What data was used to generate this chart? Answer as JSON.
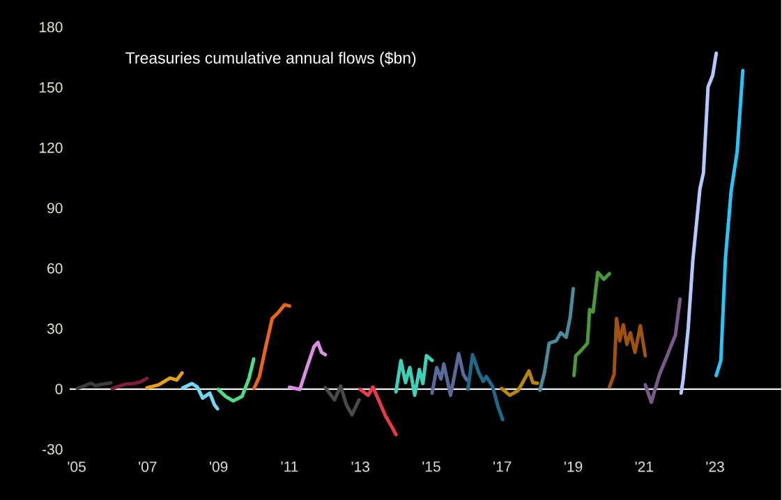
{
  "chart_data": {
    "type": "line",
    "title": "Treasuries cumulative annual flows ($bn)",
    "xlim": [
      2004.8,
      2024.86
    ],
    "ylim": [
      -30,
      180
    ],
    "xticks": [
      {
        "value": 2005,
        "label": "'05"
      },
      {
        "value": 2007,
        "label": "'07"
      },
      {
        "value": 2009,
        "label": "'09"
      },
      {
        "value": 2011,
        "label": "'11"
      },
      {
        "value": 2013,
        "label": "'13"
      },
      {
        "value": 2015,
        "label": "'15"
      },
      {
        "value": 2017,
        "label": "'17"
      },
      {
        "value": 2019,
        "label": "'19"
      },
      {
        "value": 2021,
        "label": "'21"
      },
      {
        "value": 2023,
        "label": "'23"
      }
    ],
    "yticks": [
      -30,
      0,
      30,
      60,
      90,
      120,
      150,
      180
    ],
    "ref_lines": [
      {
        "axis": "y",
        "value": 0,
        "color": "#e6e6e6"
      }
    ],
    "series": [
      {
        "color": "#3c3c3c",
        "x": [
          2005.02,
          2005.2,
          2005.4,
          2005.53,
          2005.75,
          2005.96
        ],
        "values": [
          0.3,
          1.5,
          2.9,
          1.7,
          2.5,
          3.1
        ]
      },
      {
        "color": "#7a1f35",
        "x": [
          2006.0,
          2006.2,
          2006.4,
          2006.6,
          2006.8,
          2006.9,
          2006.98
        ],
        "values": [
          0.2,
          1.5,
          2.5,
          2.7,
          3.6,
          4.5,
          5.3
        ]
      },
      {
        "color": "#e6a015",
        "x": [
          2006.98,
          2007.31,
          2007.63,
          2007.82,
          2007.97
        ],
        "values": [
          0.6,
          2.1,
          5.5,
          4.5,
          8.0
        ]
      },
      {
        "color": "#6fd8f5",
        "x": [
          2007.99,
          2008.25,
          2008.4,
          2008.55,
          2008.75,
          2008.88,
          2008.97
        ],
        "values": [
          0.6,
          2.7,
          1.0,
          -4.5,
          -2.0,
          -7.7,
          -9.8
        ]
      },
      {
        "color": "#4fdc8a",
        "x": [
          2008.99,
          2009.2,
          2009.41,
          2009.66,
          2009.86,
          2009.99
        ],
        "values": [
          -0.2,
          -3.7,
          -5.9,
          -3.7,
          5.5,
          14.9
        ]
      },
      {
        "color": "#e8661a",
        "x": [
          2010.0,
          2010.15,
          2010.31,
          2010.51,
          2010.7,
          2010.86,
          2011.0
        ],
        "values": [
          0.3,
          6.2,
          19.4,
          35,
          38.4,
          41.9,
          41.3
        ]
      },
      {
        "color": "#d98ee0",
        "x": [
          2011.0,
          2011.29,
          2011.49,
          2011.69,
          2011.8,
          2011.9,
          2012.01
        ],
        "values": [
          0.9,
          -0.2,
          10.7,
          21.1,
          23.2,
          18.3,
          17.1
        ]
      },
      {
        "color": "#4a4a4a",
        "x": [
          2012.01,
          2012.27,
          2012.44,
          2012.6,
          2012.76,
          2012.96
        ],
        "values": [
          0.7,
          -5.4,
          1.5,
          -7.7,
          -12.8,
          -5.4
        ]
      },
      {
        "color": "#e83a4a",
        "x": [
          2012.99,
          2013.22,
          2013.35,
          2013.51,
          2013.71,
          2013.9,
          2014.0
        ],
        "values": [
          -0.2,
          -3.1,
          1.0,
          -5.4,
          -13.5,
          -19.3,
          -22.7
        ]
      },
      {
        "color": "#3fd0b8",
        "x": [
          2014.0,
          2014.14,
          2014.27,
          2014.39,
          2014.53,
          2014.66,
          2014.76,
          2014.86,
          2015.02
        ],
        "values": [
          -1.4,
          14.2,
          3.2,
          10.7,
          -3.1,
          9.7,
          2.7,
          16.6,
          14.2
        ]
      },
      {
        "color": "#5a6a9a",
        "x": [
          2015.02,
          2015.15,
          2015.27,
          2015.35,
          2015.54,
          2015.77,
          2015.9,
          2016.0
        ],
        "values": [
          -2.0,
          10.7,
          5.0,
          12.5,
          -3.1,
          17.6,
          7.3,
          4.5
        ]
      },
      {
        "color": "#1f6a8a",
        "x": [
          2016.03,
          2016.16,
          2016.33,
          2016.46,
          2016.55,
          2016.72,
          2016.88,
          2017.01
        ],
        "values": [
          -0.2,
          17.1,
          8.4,
          3.8,
          6.2,
          1.5,
          -8.9,
          -15.2
        ]
      },
      {
        "color": "#b8860b",
        "x": [
          2016.98,
          2017.21,
          2017.44,
          2017.57,
          2017.75,
          2017.86,
          2017.99
        ],
        "values": [
          0.3,
          -3.1,
          -0.8,
          3.2,
          9.0,
          3.2,
          2.9
        ]
      },
      {
        "color": "#4a8a9a",
        "x": [
          2018.06,
          2018.19,
          2018.32,
          2018.52,
          2018.65,
          2018.8,
          2018.91,
          2019.0
        ],
        "values": [
          -0.6,
          8.4,
          22.8,
          24,
          28,
          25.7,
          35.5,
          49.9
        ]
      },
      {
        "color": "#4a9a3a",
        "x": [
          2019.02,
          2019.07,
          2019.2,
          2019.4,
          2019.46,
          2019.56,
          2019.69,
          2019.86,
          2020.02
        ],
        "values": [
          6.7,
          16.5,
          18.8,
          22.8,
          39.5,
          38.4,
          58,
          54.6,
          57.4
        ]
      },
      {
        "color": "#a0520f",
        "x": [
          2020.02,
          2020.15,
          2020.22,
          2020.31,
          2020.41,
          2020.51,
          2020.61,
          2020.74,
          2020.89,
          2021.03
        ],
        "values": [
          1.0,
          7.3,
          35,
          24,
          32,
          22.2,
          28,
          18.2,
          31.5,
          16.5
        ]
      },
      {
        "color": "#7a5a8a",
        "x": [
          2021.03,
          2021.2,
          2021.43,
          2021.62,
          2021.88,
          2022.01
        ],
        "values": [
          2.1,
          -6.6,
          7.3,
          15.4,
          26.9,
          44.7
        ]
      },
      {
        "color": "#b4c8ff",
        "x": [
          2022.04,
          2022.1,
          2022.24,
          2022.37,
          2022.57,
          2022.67,
          2022.8,
          2022.93,
          2023.03
        ],
        "values": [
          -2.0,
          5.0,
          30.3,
          63.8,
          99.5,
          107.6,
          150.3,
          156,
          167
        ]
      },
      {
        "color": "#29c5f6",
        "x": [
          2023.03,
          2023.16,
          2023.29,
          2023.45,
          2023.62,
          2023.78
        ],
        "values": [
          6.7,
          14.2,
          64.9,
          98.4,
          118,
          158.4
        ]
      }
    ]
  }
}
